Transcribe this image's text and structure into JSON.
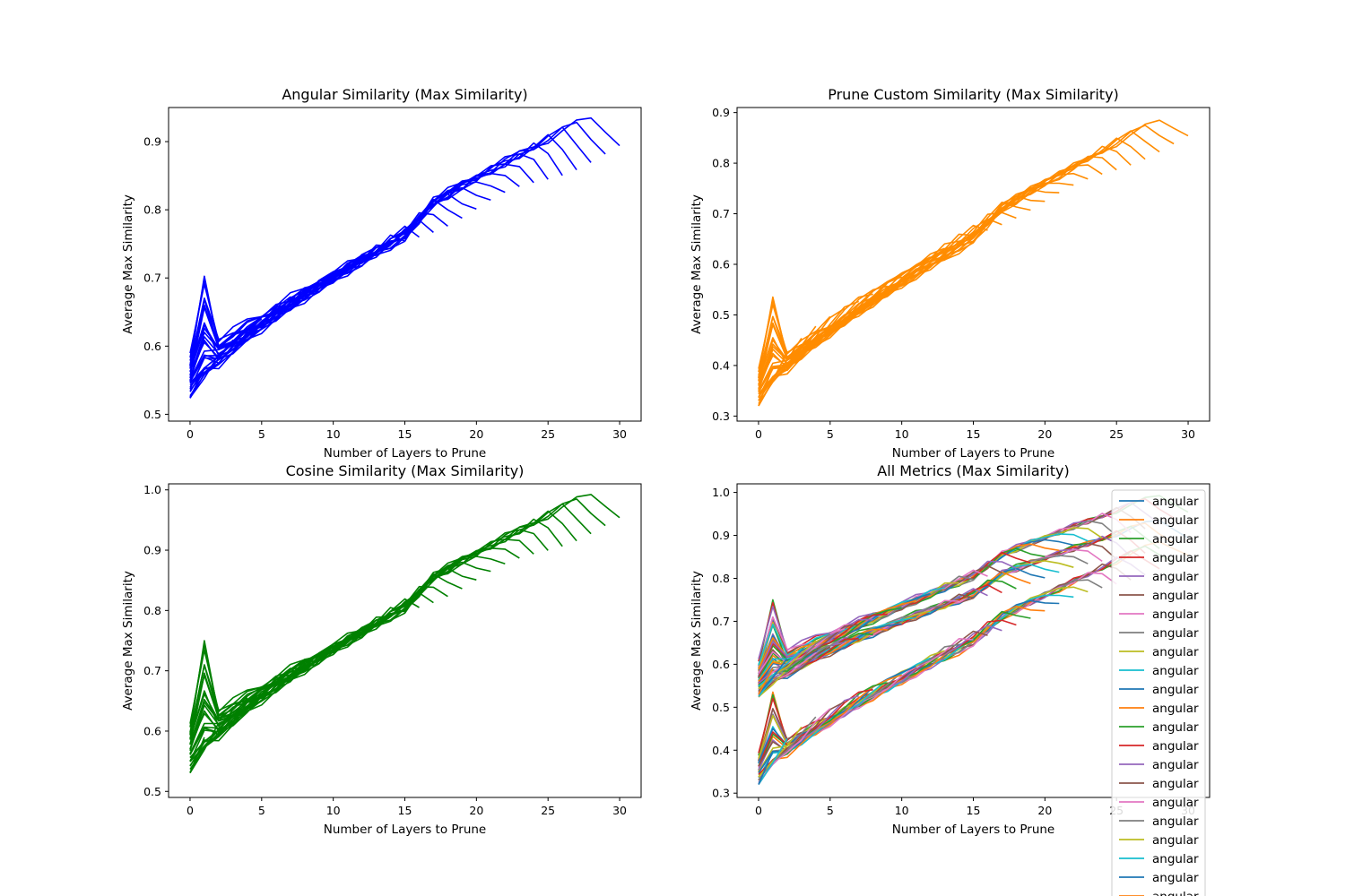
{
  "chart_data": [
    {
      "type": "line",
      "title": "Angular Similarity (Max Similarity)",
      "xlabel": "Number of Layers to Prune",
      "ylabel": "Average Max Similarity",
      "xlim": [
        -1.5,
        31.5
      ],
      "ylim": [
        0.49,
        0.95
      ],
      "xticks": [
        0,
        5,
        10,
        15,
        20,
        25,
        30
      ],
      "yticks": [
        0.5,
        0.6,
        0.7,
        0.8,
        0.9
      ],
      "ytick_labels": [
        "0.5",
        "0.6",
        "0.7",
        "0.8",
        "0.9"
      ],
      "color": "#0000ff",
      "grid": false,
      "legend": "none",
      "curves": {
        "y_start": 0.515,
        "start_spread": 0.06,
        "y_end": 0.93,
        "base_offset": 0.1,
        "y_end_low": 0.54
      }
    },
    {
      "type": "line",
      "title": "Prune Custom Similarity (Max Similarity)",
      "xlabel": "Number of Layers to Prune",
      "ylabel": "Average Max Similarity",
      "xlim": [
        -1.5,
        31.5
      ],
      "ylim": [
        0.29,
        0.91
      ],
      "xticks": [
        0,
        5,
        10,
        15,
        20,
        25,
        30
      ],
      "yticks": [
        0.3,
        0.4,
        0.5,
        0.6,
        0.7,
        0.8,
        0.9
      ],
      "ytick_labels": [
        "0.3",
        "0.4",
        "0.5",
        "0.6",
        "0.7",
        "0.8",
        "0.9"
      ],
      "color": "#ff8c00",
      "grid": false,
      "legend": "none",
      "curves": {
        "y_start": 0.31,
        "start_spread": 0.07,
        "y_end": 0.89,
        "base_offset": 0.12,
        "y_end_low": 0.36
      }
    },
    {
      "type": "line",
      "title": "Cosine Similarity (Max Similarity)",
      "xlabel": "Number of Layers to Prune",
      "ylabel": "Average Max Similarity",
      "xlim": [
        -1.5,
        31.5
      ],
      "ylim": [
        0.49,
        1.01
      ],
      "xticks": [
        0,
        5,
        10,
        15,
        20,
        25,
        30
      ],
      "yticks": [
        0.5,
        0.6,
        0.7,
        0.8,
        0.9,
        1.0
      ],
      "ytick_labels": [
        "0.5",
        "0.6",
        "0.7",
        "0.8",
        "0.9",
        "1.0"
      ],
      "color": "#008000",
      "grid": false,
      "legend": "none",
      "curves": {
        "y_start": 0.52,
        "start_spread": 0.08,
        "y_end": 0.99,
        "base_offset": 0.12,
        "y_end_low": 0.56
      }
    },
    {
      "type": "line",
      "title": "All Metrics (Max Similarity)",
      "xlabel": "Number of Layers to Prune",
      "ylabel": "Average Max Similarity",
      "xlim": [
        -1.5,
        31.5
      ],
      "ylim": [
        0.29,
        1.02
      ],
      "xticks": [
        0,
        5,
        10,
        15,
        20,
        25,
        30
      ],
      "yticks": [
        0.3,
        0.4,
        0.5,
        0.6,
        0.7,
        0.8,
        0.9,
        1.0
      ],
      "ytick_labels": [
        "0.3",
        "0.4",
        "0.5",
        "0.6",
        "0.7",
        "0.8",
        "0.9",
        "1.0"
      ],
      "grid": false,
      "legend": "upper-right",
      "legend_entries": [
        "angular",
        "angular",
        "angular",
        "angular",
        "angular",
        "angular",
        "angular",
        "angular",
        "angular",
        "angular",
        "angular",
        "angular",
        "angular",
        "angular",
        "angular",
        "angular",
        "angular",
        "angular",
        "angular",
        "angular",
        "angular",
        "angular"
      ],
      "palette": [
        "#1f77b4",
        "#ff7f0e",
        "#2ca02c",
        "#d62728",
        "#9467bd",
        "#8c564b",
        "#e377c2",
        "#7f7f7f",
        "#bcbd22",
        "#17becf"
      ],
      "combined_from": [
        0,
        1,
        2
      ]
    }
  ]
}
